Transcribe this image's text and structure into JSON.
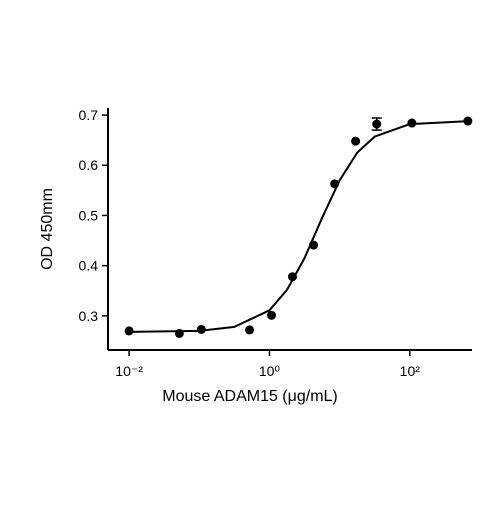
{
  "chart_data": {
    "type": "scatter",
    "xlabel": "Mouse ADAM15 (μg/mL)",
    "ylabel": "OD 450mm",
    "xscale": "log",
    "xlim": [
      0.005,
      770
    ],
    "ylim": [
      0.232,
      0.714
    ],
    "xticks": [
      {
        "value": 0.01,
        "label": "10⁻²"
      },
      {
        "value": 1,
        "label": "10⁰"
      },
      {
        "value": 100,
        "label": "10²"
      }
    ],
    "yticks": [
      0.3,
      0.4,
      0.5,
      0.6,
      0.7
    ],
    "color": "#000000",
    "x": [
      0.01,
      0.052,
      0.107,
      0.52,
      1.07,
      2.13,
      4.25,
      8.5,
      16.9,
      33.8,
      107,
      672
    ],
    "values": [
      0.27,
      0.265,
      0.273,
      0.272,
      0.301,
      0.378,
      0.441,
      0.563,
      0.648,
      0.682,
      0.684,
      0.688
    ],
    "errors": [
      null,
      null,
      null,
      null,
      null,
      null,
      null,
      null,
      null,
      0.012,
      null,
      null
    ],
    "fit": {
      "x": [
        0.01,
        0.1,
        0.316,
        1,
        1.78,
        3.16,
        5.62,
        10,
        17.8,
        31.6,
        100,
        750
      ],
      "values": [
        0.268,
        0.27,
        0.278,
        0.311,
        0.352,
        0.415,
        0.495,
        0.57,
        0.625,
        0.657,
        0.682,
        0.688
      ]
    }
  }
}
